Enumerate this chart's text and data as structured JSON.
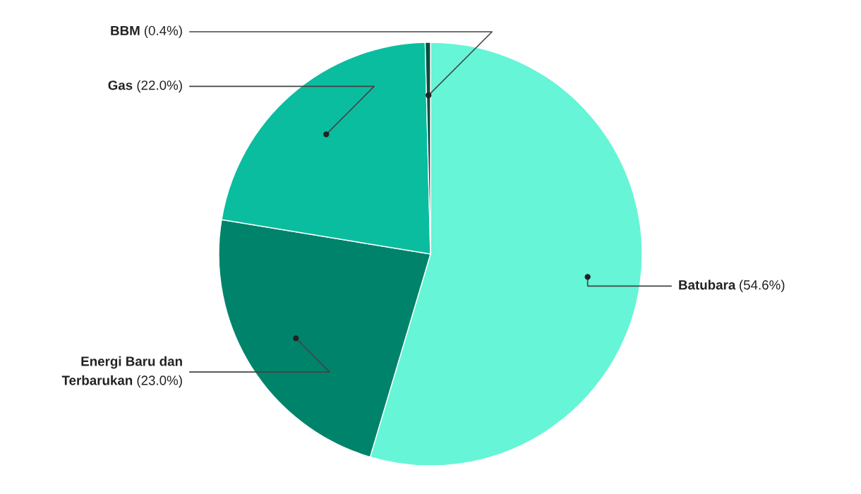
{
  "chart_data": {
    "type": "pie",
    "categories": [
      "Batubara",
      "Energi Baru dan Terbarukan",
      "Gas",
      "BBM"
    ],
    "values": [
      54.6,
      23.0,
      22.0,
      0.4
    ],
    "value_labels": [
      "(54.6%)",
      "(23.0%)",
      "(22.0%)",
      "(0.4%)"
    ],
    "colors": [
      "#66f5d6",
      "#00836b",
      "#0bbd9f",
      "#00523f"
    ],
    "legend": false
  }
}
